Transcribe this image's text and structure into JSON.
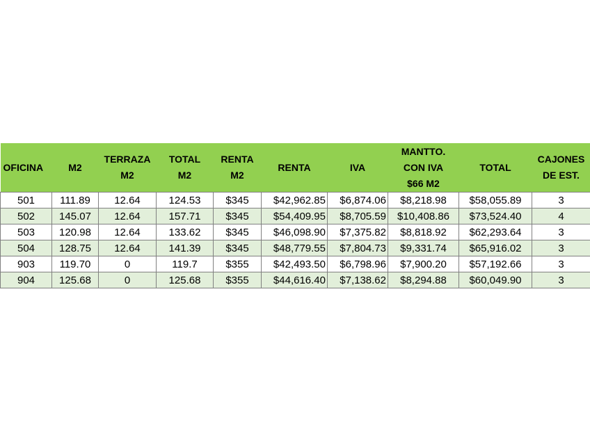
{
  "table": {
    "headers": [
      "OFICINA",
      "M2",
      "TERRAZA\nM2",
      "TOTAL\nM2",
      "RENTA\nM2",
      "RENTA",
      "IVA",
      "MANTTO.\nCON IVA\n$66 M2",
      "TOTAL",
      "CAJONES\nDE EST."
    ],
    "rows": [
      [
        "501",
        "111.89",
        "12.64",
        "124.53",
        "$345",
        "$42,962.85",
        "$6,874.06",
        "$8,218.98",
        "$58,055.89",
        "3"
      ],
      [
        "502",
        "145.07",
        "12.64",
        "157.71",
        "$345",
        "$54,409.95",
        "$8,705.59",
        "$10,408.86",
        "$73,524.40",
        "4"
      ],
      [
        "503",
        "120.98",
        "12.64",
        "133.62",
        "$345",
        "$46,098.90",
        "$7,375.82",
        "$8,818.92",
        "$62,293.64",
        "3"
      ],
      [
        "504",
        "128.75",
        "12.64",
        "141.39",
        "$345",
        "$48,779.55",
        "$7,804.73",
        "$9,331.74",
        "$65,916.02",
        "3"
      ],
      [
        "903",
        "119.70",
        "0",
        "119.7",
        "$355",
        "$42,493.50",
        "$6,798.96",
        "$7,900.20",
        "$57,192.66",
        "3"
      ],
      [
        "904",
        "125.68",
        "0",
        "125.68",
        "$355",
        "$44,616.40",
        "$7,138.62",
        "$8,294.88",
        "$60,049.90",
        "3"
      ]
    ]
  },
  "colors": {
    "header_bg": "#92d050",
    "band_green": "#e2efda",
    "band_white": "#ffffff",
    "grid": "#808080"
  }
}
